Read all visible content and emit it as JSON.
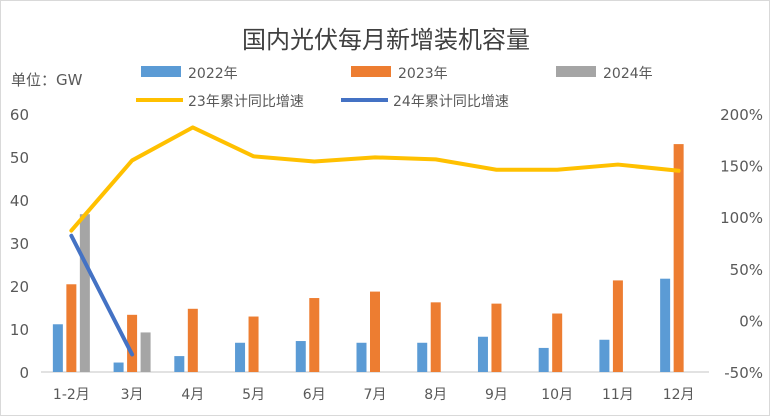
{
  "chart_data": {
    "type": "bar",
    "title": "国内光伏每月新增装机容量",
    "unit_label": "单位：GW",
    "categories": [
      "1-2月",
      "3月",
      "4月",
      "5月",
      "6月",
      "7月",
      "8月",
      "9月",
      "10月",
      "11月",
      "12月"
    ],
    "ylim": [
      0,
      60
    ],
    "yticks": [
      "0",
      "10",
      "20",
      "30",
      "40",
      "50",
      "60"
    ],
    "y2lim": [
      -50,
      200
    ],
    "y2ticks": [
      "-50%",
      "0%",
      "50%",
      "100%",
      "150%",
      "200%"
    ],
    "grid": false,
    "legend_position": "top",
    "series": [
      {
        "name": "2022年",
        "type": "bar",
        "axis": "left",
        "color": "#5b9bd5",
        "values": [
          11.1,
          2.2,
          3.7,
          6.8,
          7.2,
          6.8,
          6.8,
          8.2,
          5.6,
          7.5,
          21.7
        ]
      },
      {
        "name": "2023年",
        "type": "bar",
        "axis": "left",
        "color": "#ed7d31",
        "values": [
          20.4,
          13.3,
          14.7,
          12.9,
          17.2,
          18.7,
          16.2,
          15.9,
          13.6,
          21.3,
          53.0
        ]
      },
      {
        "name": "2024年",
        "type": "bar",
        "axis": "left",
        "color": "#a5a5a5",
        "values": [
          36.7,
          9.2,
          null,
          null,
          null,
          null,
          null,
          null,
          null,
          null,
          null
        ]
      },
      {
        "name": "23年累计同比增速",
        "type": "line",
        "axis": "right",
        "color": "#ffc000",
        "values": [
          87,
          155,
          187,
          159,
          154,
          158,
          156,
          146,
          146,
          151,
          145
        ]
      },
      {
        "name": "24年累计同比增速",
        "type": "line",
        "axis": "right",
        "color": "#4472c4",
        "values": [
          82,
          -33,
          null,
          null,
          null,
          null,
          null,
          null,
          null,
          null,
          null
        ]
      }
    ]
  }
}
